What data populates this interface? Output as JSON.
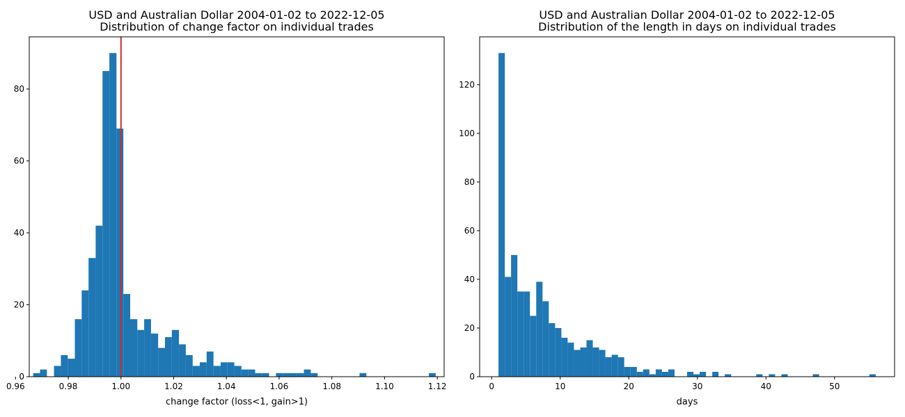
{
  "colors": {
    "bar": "#1f77b4",
    "reference_line": "#d62728",
    "axes": "#000000"
  },
  "chart_data": [
    {
      "type": "bar",
      "title": "USD and Australian Dollar 2004-01-02 to 2022-12-05",
      "subtitle": "Distribution of change factor on individual trades",
      "xlabel": "change factor (loss<1, gain>1)",
      "ylabel": "",
      "xlim": [
        0.9652,
        1.1226
      ],
      "ylim": [
        0,
        94.5
      ],
      "xticks": [
        0.96,
        0.98,
        1.0,
        1.02,
        1.04,
        1.06,
        1.08,
        1.1,
        1.12
      ],
      "xtick_labels": [
        "0.96",
        "0.98",
        "1.00",
        "1.02",
        "1.04",
        "1.06",
        "1.08",
        "1.10",
        "1.12"
      ],
      "yticks": [
        0,
        20,
        40,
        60,
        80
      ],
      "ytick_labels": [
        "0",
        "20",
        "40",
        "60",
        "80"
      ],
      "reference_line": {
        "x": 1.0
      },
      "grid": false,
      "bins": [
        {
          "x0": 0.9667,
          "x1": 0.9693,
          "value": 1
        },
        {
          "x0": 0.9693,
          "x1": 0.9719,
          "value": 2
        },
        {
          "x0": 0.9746,
          "x1": 0.9772,
          "value": 3
        },
        {
          "x0": 0.9772,
          "x1": 0.9798,
          "value": 6
        },
        {
          "x0": 0.9798,
          "x1": 0.9825,
          "value": 5
        },
        {
          "x0": 0.9825,
          "x1": 0.9851,
          "value": 16
        },
        {
          "x0": 0.9851,
          "x1": 0.9877,
          "value": 24
        },
        {
          "x0": 0.9877,
          "x1": 0.9904,
          "value": 33
        },
        {
          "x0": 0.9904,
          "x1": 0.993,
          "value": 42
        },
        {
          "x0": 0.993,
          "x1": 0.9956,
          "value": 85
        },
        {
          "x0": 0.9956,
          "x1": 0.9983,
          "value": 90
        },
        {
          "x0": 0.9983,
          "x1": 1.0009,
          "value": 69
        },
        {
          "x0": 1.0009,
          "x1": 1.0035,
          "value": 23
        },
        {
          "x0": 1.0035,
          "x1": 1.0062,
          "value": 16
        },
        {
          "x0": 1.0062,
          "x1": 1.0088,
          "value": 13
        },
        {
          "x0": 1.0088,
          "x1": 1.0114,
          "value": 16
        },
        {
          "x0": 1.0114,
          "x1": 1.0141,
          "value": 12
        },
        {
          "x0": 1.0141,
          "x1": 1.0167,
          "value": 8
        },
        {
          "x0": 1.0167,
          "x1": 1.0193,
          "value": 11
        },
        {
          "x0": 1.0193,
          "x1": 1.022,
          "value": 13
        },
        {
          "x0": 1.022,
          "x1": 1.0246,
          "value": 9
        },
        {
          "x0": 1.0246,
          "x1": 1.0272,
          "value": 6
        },
        {
          "x0": 1.0272,
          "x1": 1.0299,
          "value": 3
        },
        {
          "x0": 1.0299,
          "x1": 1.0325,
          "value": 4
        },
        {
          "x0": 1.0325,
          "x1": 1.0351,
          "value": 7
        },
        {
          "x0": 1.0351,
          "x1": 1.0378,
          "value": 3
        },
        {
          "x0": 1.0378,
          "x1": 1.0404,
          "value": 4
        },
        {
          "x0": 1.0404,
          "x1": 1.043,
          "value": 4
        },
        {
          "x0": 1.043,
          "x1": 1.0457,
          "value": 3
        },
        {
          "x0": 1.0457,
          "x1": 1.0483,
          "value": 2
        },
        {
          "x0": 1.0483,
          "x1": 1.0509,
          "value": 2
        },
        {
          "x0": 1.0509,
          "x1": 1.0536,
          "value": 1
        },
        {
          "x0": 1.0536,
          "x1": 1.0562,
          "value": 1
        },
        {
          "x0": 1.0588,
          "x1": 1.0615,
          "value": 1
        },
        {
          "x0": 1.0615,
          "x1": 1.0641,
          "value": 1
        },
        {
          "x0": 1.0641,
          "x1": 1.0667,
          "value": 1
        },
        {
          "x0": 1.0667,
          "x1": 1.0694,
          "value": 1
        },
        {
          "x0": 1.0694,
          "x1": 1.072,
          "value": 2
        },
        {
          "x0": 1.072,
          "x1": 1.0746,
          "value": 1
        },
        {
          "x0": 1.0905,
          "x1": 1.0931,
          "value": 1
        },
        {
          "x0": 1.1168,
          "x1": 1.1194,
          "value": 1
        }
      ]
    },
    {
      "type": "bar",
      "title": "USD and Australian Dollar 2004-01-02 to 2022-12-05",
      "subtitle": "Distribution of the length in days on individual trades",
      "xlabel": "days",
      "ylabel": "",
      "xlim": [
        -1.75,
        58.75
      ],
      "ylim": [
        0,
        139.65
      ],
      "xticks": [
        0,
        10,
        20,
        30,
        40,
        50
      ],
      "xtick_labels": [
        "0",
        "10",
        "20",
        "30",
        "40",
        "50"
      ],
      "yticks": [
        0,
        20,
        40,
        60,
        80,
        100,
        120
      ],
      "ytick_labels": [
        "0",
        "20",
        "40",
        "60",
        "80",
        "100",
        "120"
      ],
      "grid": false,
      "bins": [
        {
          "x0": 1.0,
          "x1": 1.92,
          "value": 133
        },
        {
          "x0": 1.92,
          "x1": 2.83,
          "value": 41
        },
        {
          "x0": 2.83,
          "x1": 3.75,
          "value": 50
        },
        {
          "x0": 3.75,
          "x1": 4.67,
          "value": 35
        },
        {
          "x0": 4.67,
          "x1": 5.58,
          "value": 35
        },
        {
          "x0": 5.58,
          "x1": 6.5,
          "value": 25
        },
        {
          "x0": 6.5,
          "x1": 7.42,
          "value": 39
        },
        {
          "x0": 7.42,
          "x1": 8.33,
          "value": 31
        },
        {
          "x0": 8.33,
          "x1": 9.25,
          "value": 22
        },
        {
          "x0": 9.25,
          "x1": 10.17,
          "value": 20
        },
        {
          "x0": 10.17,
          "x1": 11.08,
          "value": 16
        },
        {
          "x0": 11.08,
          "x1": 12.0,
          "value": 14
        },
        {
          "x0": 12.0,
          "x1": 12.92,
          "value": 11
        },
        {
          "x0": 12.92,
          "x1": 13.83,
          "value": 12
        },
        {
          "x0": 13.83,
          "x1": 14.75,
          "value": 15
        },
        {
          "x0": 14.75,
          "x1": 15.67,
          "value": 12
        },
        {
          "x0": 15.67,
          "x1": 16.58,
          "value": 11
        },
        {
          "x0": 16.58,
          "x1": 17.5,
          "value": 8
        },
        {
          "x0": 17.5,
          "x1": 18.42,
          "value": 9
        },
        {
          "x0": 18.42,
          "x1": 19.33,
          "value": 8
        },
        {
          "x0": 19.33,
          "x1": 20.25,
          "value": 4
        },
        {
          "x0": 20.25,
          "x1": 21.17,
          "value": 4
        },
        {
          "x0": 21.17,
          "x1": 22.08,
          "value": 2
        },
        {
          "x0": 22.08,
          "x1": 23.0,
          "value": 3
        },
        {
          "x0": 23.0,
          "x1": 23.92,
          "value": 1
        },
        {
          "x0": 23.92,
          "x1": 24.83,
          "value": 3
        },
        {
          "x0": 24.83,
          "x1": 25.75,
          "value": 2
        },
        {
          "x0": 25.75,
          "x1": 26.67,
          "value": 3
        },
        {
          "x0": 28.5,
          "x1": 29.42,
          "value": 2
        },
        {
          "x0": 29.42,
          "x1": 30.33,
          "value": 1
        },
        {
          "x0": 30.33,
          "x1": 31.25,
          "value": 2
        },
        {
          "x0": 32.17,
          "x1": 33.08,
          "value": 2
        },
        {
          "x0": 34.0,
          "x1": 34.92,
          "value": 1
        },
        {
          "x0": 38.58,
          "x1": 39.5,
          "value": 1
        },
        {
          "x0": 40.42,
          "x1": 41.33,
          "value": 1
        },
        {
          "x0": 42.25,
          "x1": 43.17,
          "value": 1
        },
        {
          "x0": 46.83,
          "x1": 47.75,
          "value": 1
        },
        {
          "x0": 55.08,
          "x1": 56.0,
          "value": 1
        }
      ]
    }
  ]
}
